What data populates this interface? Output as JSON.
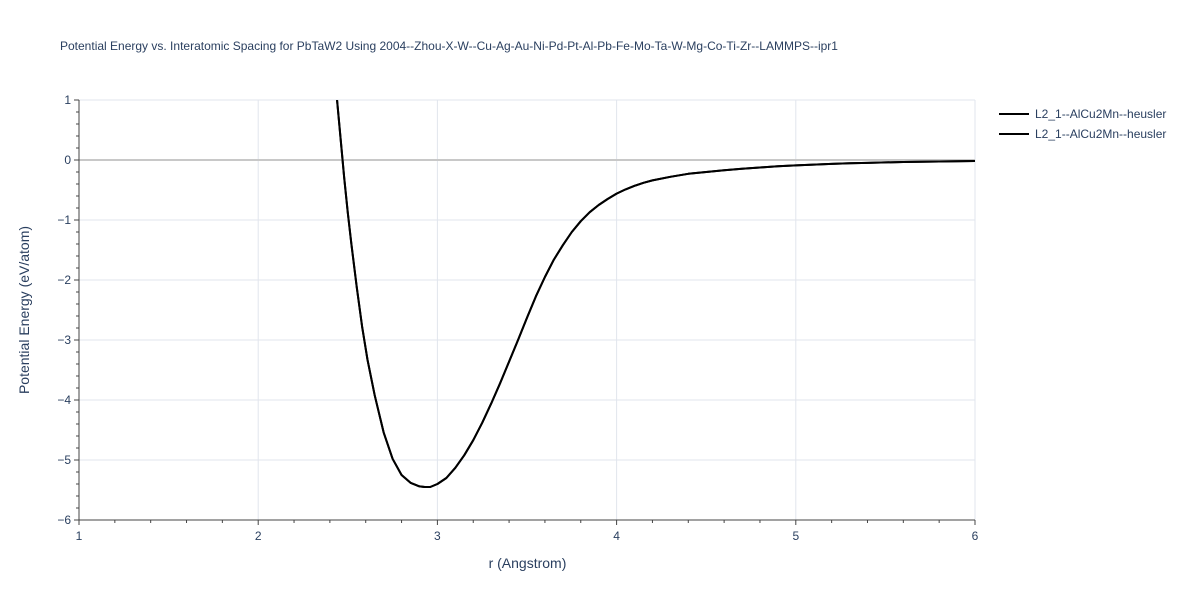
{
  "chart_data": {
    "type": "line",
    "title": "Potential Energy vs. Interatomic Spacing for PbTaW2 Using 2004--Zhou-X-W--Cu-Ag-Au-Ni-Pd-Pt-Al-Pb-Fe-Mo-Ta-W-Mg-Co-Ti-Zr--LAMMPS--ipr1",
    "xlabel": "r (Angstrom)",
    "ylabel": "Potential Energy (eV/atom)",
    "xlim": [
      1,
      6
    ],
    "ylim": [
      -6,
      1
    ],
    "x_ticks": [
      1,
      2,
      3,
      4,
      5,
      6
    ],
    "x_tick_labels": [
      "1",
      "2",
      "3",
      "4",
      "5",
      "6"
    ],
    "y_ticks": [
      1,
      0,
      -1,
      -2,
      -3,
      -4,
      -5,
      -6
    ],
    "y_tick_labels": [
      "1",
      "0",
      "−1",
      "−2",
      "−3",
      "−4",
      "−5",
      "−6"
    ],
    "grid": true,
    "legend_position": "top-right",
    "series": [
      {
        "name": "L2_1--AlCu2Mn--heusler",
        "color": "#000000",
        "x": [
          2.44,
          2.46,
          2.48,
          2.5,
          2.52,
          2.55,
          2.58,
          2.61,
          2.65,
          2.7,
          2.75,
          2.8,
          2.85,
          2.9,
          2.93,
          2.96,
          3.0,
          3.05,
          3.1,
          3.15,
          3.2,
          3.25,
          3.3,
          3.35,
          3.4,
          3.45,
          3.5,
          3.55,
          3.6,
          3.65,
          3.7,
          3.75,
          3.8,
          3.85,
          3.9,
          3.95,
          4.0,
          4.05,
          4.1,
          4.15,
          4.2,
          4.3,
          4.4,
          4.5,
          4.6,
          4.7,
          4.8,
          4.9,
          5.0,
          5.1,
          5.2,
          5.3,
          5.4,
          5.5,
          5.6,
          5.7,
          5.8,
          5.9,
          6.0
        ],
        "y": [
          1.0,
          0.35,
          -0.3,
          -0.88,
          -1.4,
          -2.12,
          -2.78,
          -3.33,
          -3.92,
          -4.54,
          -4.98,
          -5.25,
          -5.38,
          -5.44,
          -5.45,
          -5.45,
          -5.4,
          -5.3,
          -5.13,
          -4.92,
          -4.67,
          -4.38,
          -4.06,
          -3.72,
          -3.36,
          -3.0,
          -2.63,
          -2.27,
          -1.95,
          -1.66,
          -1.42,
          -1.2,
          -1.02,
          -0.87,
          -0.75,
          -0.65,
          -0.56,
          -0.49,
          -0.43,
          -0.38,
          -0.34,
          -0.28,
          -0.23,
          -0.2,
          -0.17,
          -0.145,
          -0.125,
          -0.105,
          -0.09,
          -0.077,
          -0.065,
          -0.055,
          -0.047,
          -0.04,
          -0.034,
          -0.029,
          -0.024,
          -0.02,
          -0.016
        ]
      },
      {
        "name": "L2_1--AlCu2Mn--heusler",
        "color": "#000000",
        "x": [
          2.44,
          2.46,
          2.48,
          2.5,
          2.52,
          2.55,
          2.58,
          2.61,
          2.65,
          2.7,
          2.75,
          2.8,
          2.85,
          2.9,
          2.93,
          2.96,
          3.0,
          3.05,
          3.1,
          3.15,
          3.2,
          3.25,
          3.3,
          3.35,
          3.4,
          3.45,
          3.5,
          3.55,
          3.6,
          3.65,
          3.7,
          3.75,
          3.8,
          3.85,
          3.9,
          3.95,
          4.0,
          4.05,
          4.1,
          4.15,
          4.2,
          4.3,
          4.4,
          4.5,
          4.6,
          4.7,
          4.8,
          4.9,
          5.0,
          5.1,
          5.2,
          5.3,
          5.4,
          5.5,
          5.6,
          5.7,
          5.8,
          5.9,
          6.0
        ],
        "y": [
          1.0,
          0.35,
          -0.3,
          -0.88,
          -1.4,
          -2.12,
          -2.78,
          -3.33,
          -3.92,
          -4.54,
          -4.98,
          -5.25,
          -5.38,
          -5.44,
          -5.45,
          -5.45,
          -5.4,
          -5.3,
          -5.13,
          -4.92,
          -4.67,
          -4.38,
          -4.06,
          -3.72,
          -3.36,
          -3.0,
          -2.63,
          -2.27,
          -1.95,
          -1.66,
          -1.42,
          -1.2,
          -1.02,
          -0.87,
          -0.75,
          -0.65,
          -0.56,
          -0.49,
          -0.43,
          -0.38,
          -0.34,
          -0.28,
          -0.23,
          -0.2,
          -0.17,
          -0.145,
          -0.125,
          -0.105,
          -0.09,
          -0.077,
          -0.065,
          -0.055,
          -0.047,
          -0.04,
          -0.034,
          -0.029,
          -0.024,
          -0.02,
          -0.016
        ]
      }
    ]
  }
}
